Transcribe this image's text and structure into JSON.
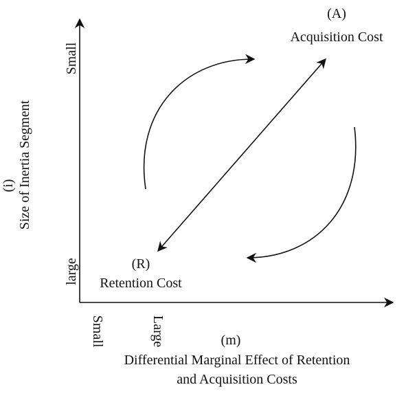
{
  "labels": {
    "a_mark": "(A)",
    "a_name": "Acquisition Cost",
    "r_mark": "(R)",
    "r_name": "Retention Cost"
  },
  "y_axis": {
    "top": "Small",
    "bottom": "large",
    "symbol": "(i)",
    "title": "Size of Inertia Segment"
  },
  "x_axis": {
    "left": "Small",
    "right": "Large",
    "symbol": "(m)",
    "title_line1": "Differential Marginal Effect of Retention",
    "title_line2": "and Acquisition Costs"
  }
}
